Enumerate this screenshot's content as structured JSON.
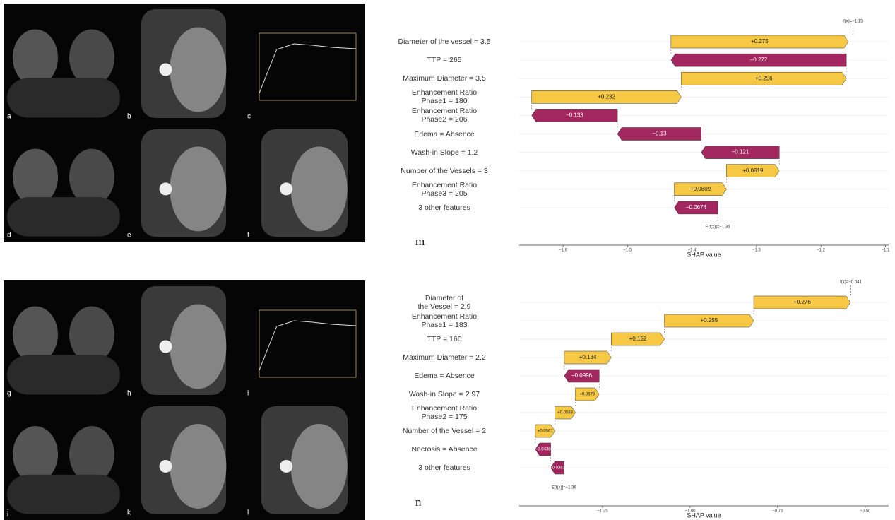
{
  "image_panels": {
    "labels": [
      "a",
      "b",
      "c",
      "d",
      "e",
      "f",
      "g",
      "h",
      "i",
      "j",
      "k",
      "l"
    ]
  },
  "chart_data": [
    {
      "type": "waterfall",
      "panel_label": "m",
      "features": [
        "Diameter of the vessel = 3.5",
        "TTP = 265",
        "Maximum Diameter = 3.5",
        "Enhancement Ratio\nPhase1 = 180",
        "Enhancement Ratio\nPhase2 = 206",
        "Edema = Absence",
        "Wash-in Slope = 1.2",
        "Number of the Vessels = 3",
        "Enhancement Ratio\nPhase3 = 205",
        "3 other features"
      ],
      "values": [
        0.275,
        -0.272,
        0.256,
        0.232,
        -0.133,
        -0.13,
        -0.121,
        0.0819,
        0.0809,
        -0.0674
      ],
      "value_labels": [
        "+0.275",
        "−0.272",
        "+0.256",
        "+0.232",
        "−0.133",
        "−0.13",
        "−0.121",
        "+0.0819",
        "+0.0809",
        "−0.0674"
      ],
      "base_value": -1.36,
      "base_label": "E[f(x)]=−1.36",
      "output_value": -1.15,
      "output_label": "f(x)=−1.15",
      "xlabel": "SHAP value",
      "xlim": [
        -1.668,
        -1.095
      ],
      "xticks": [
        {
          "value": -1.6,
          "label": "−1.6"
        },
        {
          "value": -1.5,
          "label": "−1.5"
        },
        {
          "value": -1.4,
          "label": "−1.4"
        },
        {
          "value": -1.3,
          "label": "−1.3"
        },
        {
          "value": -1.2,
          "label": "−1.2"
        },
        {
          "value": -1.1,
          "label": "−1.1"
        }
      ],
      "colors": {
        "positive": "#f6c843",
        "negative": "#a2275e"
      }
    },
    {
      "type": "waterfall",
      "panel_label": "n",
      "features": [
        "Diameter of\nthe Vessel = 2.9",
        "Enhancement Ratio\nPhase1 = 183",
        "TTP = 160",
        "Maximum Diameter = 2.2",
        "Edema = Absence",
        "Wash-in Slope = 2.97",
        "Enhancement Ratio\nPhase2 = 175",
        "Number of the Vessel = 2",
        "Necrosis = Absence",
        "3 other features"
      ],
      "values": [
        0.276,
        0.255,
        0.152,
        0.134,
        -0.0996,
        0.0679,
        0.0583,
        0.0561,
        -0.0438,
        -0.0381
      ],
      "value_labels": [
        "+0.276",
        "+0.255",
        "+0.152",
        "+0.134",
        "−0.0996",
        "+0.0679",
        "+0.0583",
        "+0.0561",
        "−0.0438",
        "−0.0381"
      ],
      "base_value": -1.36,
      "base_label": "E[f(x)]=−1.36",
      "output_value": -0.541,
      "output_label": "f(x)=−0.541",
      "xlabel": "SHAP value",
      "xlim": [
        -1.488,
        -0.433
      ],
      "xticks": [
        {
          "value": -1.25,
          "label": "−1.25"
        },
        {
          "value": -1.0,
          "label": "−1.00"
        },
        {
          "value": -0.75,
          "label": "−0.75"
        },
        {
          "value": -0.5,
          "label": "−0.50"
        }
      ],
      "colors": {
        "positive": "#f6c843",
        "negative": "#a2275e"
      }
    }
  ]
}
